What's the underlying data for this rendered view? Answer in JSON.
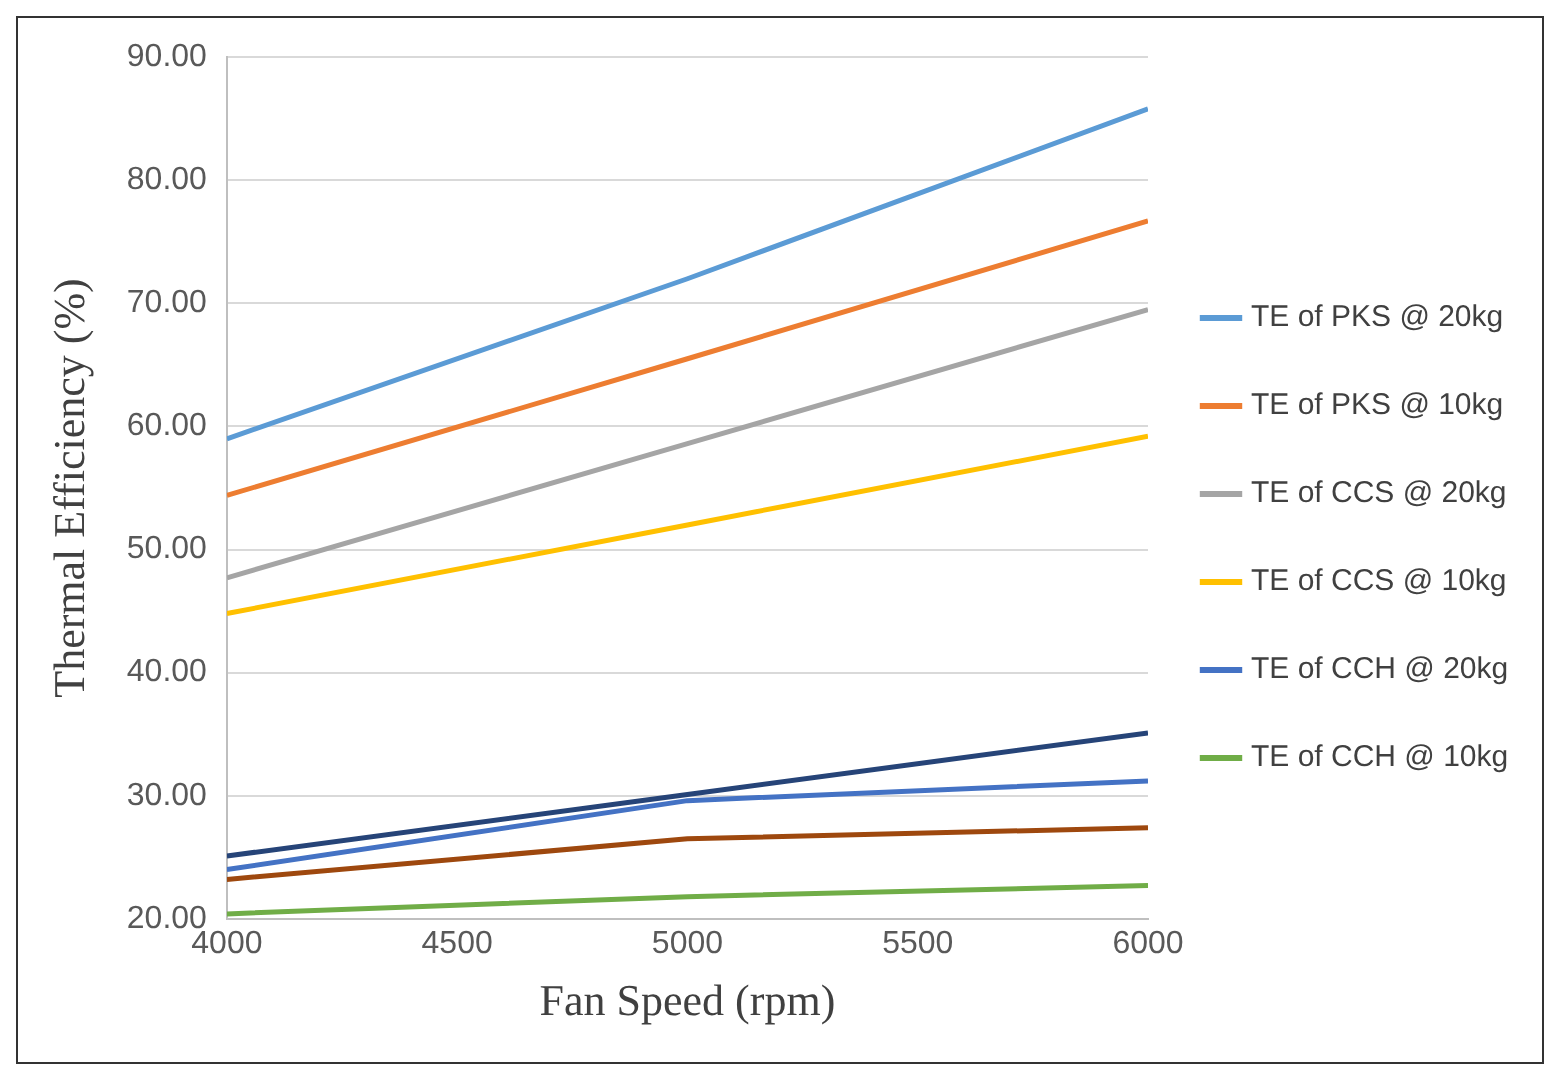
{
  "chart_data": {
    "type": "line",
    "xlabel": "Fan Speed (rpm)",
    "ylabel": "Thermal Efficiency (%)",
    "x": [
      4000,
      5000,
      6000
    ],
    "series": [
      {
        "name": "TE of PKS @ 20kg",
        "color": "#5b9bd5",
        "values": [
          59.0,
          72.0,
          85.8
        ]
      },
      {
        "name": "TE of PKS @ 10kg",
        "color": "#ed7d31",
        "values": [
          54.4,
          65.5,
          76.7
        ]
      },
      {
        "name": "TE of CCS @ 20kg",
        "color": "#a5a5a5",
        "values": [
          47.7,
          58.6,
          69.5
        ]
      },
      {
        "name": "TE of CCS @ 10kg",
        "color": "#ffc000",
        "values": [
          44.8,
          52.0,
          59.2
        ]
      },
      {
        "name": "TE of CCH @ 20kg",
        "color": "#4472c4",
        "values": [
          24.0,
          29.6,
          31.2
        ]
      },
      {
        "name": "TE of CCH @ 10kg",
        "color": "#70ad47",
        "values": [
          20.4,
          21.8,
          22.7
        ]
      },
      {
        "color": "#264478",
        "values": [
          25.1,
          30.1,
          35.1
        ]
      },
      {
        "color": "#9e480e",
        "values": [
          23.2,
          26.5,
          27.4
        ]
      }
    ],
    "xlim": [
      4000,
      6000
    ],
    "xticks": [
      4000,
      4500,
      5000,
      5500,
      6000
    ],
    "ylim": [
      20,
      90
    ],
    "yticks": [
      {
        "value": 20,
        "label": "20.00"
      },
      {
        "value": 30,
        "label": "30.00"
      },
      {
        "value": 40,
        "label": "40.00"
      },
      {
        "value": 50,
        "label": "50.00"
      },
      {
        "value": 60,
        "label": "60.00"
      },
      {
        "value": 70,
        "label": "70.00"
      },
      {
        "value": 80,
        "label": "80.00"
      },
      {
        "value": 90,
        "label": "90.00"
      }
    ],
    "grid": "y",
    "legend": "right",
    "marker": "none",
    "line_style": "solid"
  }
}
